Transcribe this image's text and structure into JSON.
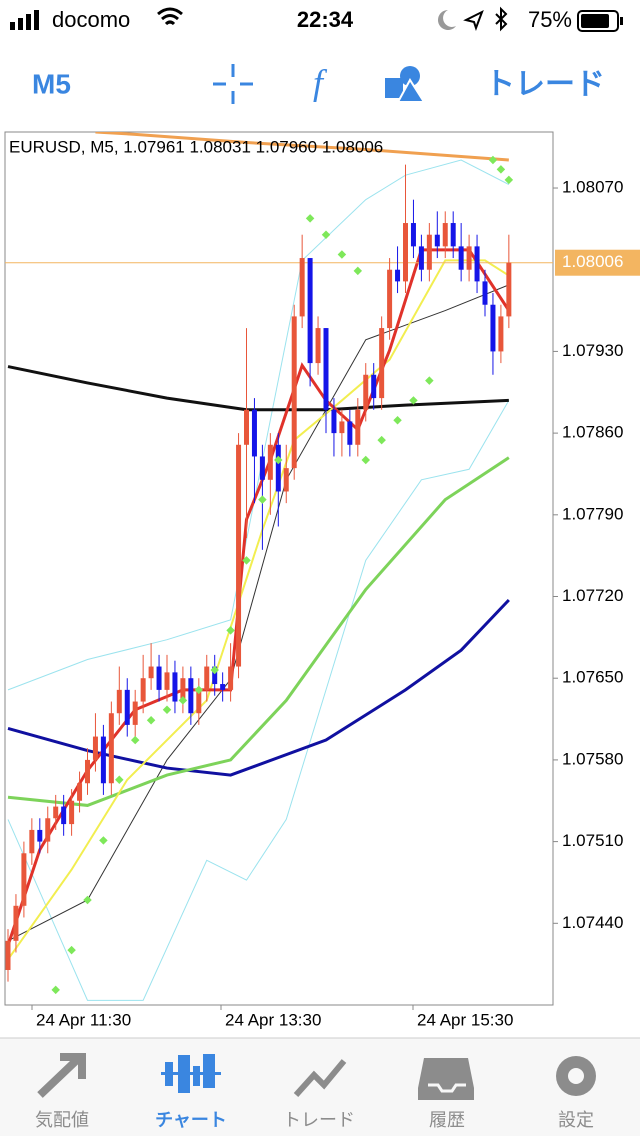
{
  "status_bar": {
    "carrier": "docomo",
    "time": "22:34",
    "battery": "75%"
  },
  "toolbar": {
    "timeframe": "M5",
    "trade": "トレード"
  },
  "chart": {
    "header": "EURUSD, M5, 1.07961 1.08031 1.07960 1.08006",
    "ylim": [
      1.0737,
      1.08118
    ],
    "yticks": [
      {
        "value": 1.0807,
        "label": "1.08070"
      },
      {
        "value": 1.0793,
        "label": "1.07930"
      },
      {
        "value": 1.0786,
        "label": "1.07860"
      },
      {
        "value": 1.0779,
        "label": "1.07790"
      },
      {
        "value": 1.0772,
        "label": "1.07720"
      },
      {
        "value": 1.0765,
        "label": "1.07650"
      },
      {
        "value": 1.0758,
        "label": "1.07580"
      },
      {
        "value": 1.0751,
        "label": "1.07510"
      },
      {
        "value": 1.0744,
        "label": "1.07440"
      }
    ],
    "current_price": 1.08006,
    "xlabels": [
      "24 Apr 11:30",
      "24 Apr 13:30",
      "24 Apr 15:30"
    ],
    "up_color": "#e8563a",
    "down_color": "#1515e8",
    "price_line_color": "#f3b561",
    "candles": {
      "open": [
        1.074,
        1.07425,
        1.07455,
        1.075,
        1.0752,
        1.0751,
        1.0753,
        1.0754,
        1.07525,
        1.07545,
        1.0756,
        1.0758,
        1.076,
        1.0756,
        1.0762,
        1.0764,
        1.0761,
        1.0763,
        1.0765,
        1.0766,
        1.0764,
        1.07655,
        1.0763,
        1.0765,
        1.0762,
        1.0764,
        1.0766,
        1.07645,
        1.0764,
        1.0766,
        1.0785,
        1.0788,
        1.0784,
        1.0782,
        1.0785,
        1.0781,
        1.0783,
        1.0796,
        1.0801,
        1.0792,
        1.0795,
        1.0788,
        1.0786,
        1.0787,
        1.0785,
        1.0788,
        1.0791,
        1.0789,
        1.0795,
        1.08,
        1.0799,
        1.0804,
        1.0802,
        1.08,
        1.0803,
        1.0802,
        1.0804,
        1.0802,
        1.08,
        1.0802,
        1.0799,
        1.0797,
        1.0793,
        1.0796
      ],
      "high": [
        1.07435,
        1.07465,
        1.0751,
        1.0753,
        1.0753,
        1.0754,
        1.0755,
        1.0755,
        1.07555,
        1.0757,
        1.0759,
        1.0762,
        1.0761,
        1.0763,
        1.0766,
        1.0765,
        1.0764,
        1.0767,
        1.0768,
        1.0767,
        1.0767,
        1.07665,
        1.0766,
        1.0766,
        1.0765,
        1.0767,
        1.0767,
        1.07655,
        1.0768,
        1.0786,
        1.0795,
        1.0789,
        1.0785,
        1.0786,
        1.0786,
        1.0785,
        1.0797,
        1.0803,
        1.0801,
        1.0796,
        1.0795,
        1.0789,
        1.0788,
        1.0788,
        1.0789,
        1.0792,
        1.0792,
        1.0796,
        1.0801,
        1.0802,
        1.0809,
        1.0806,
        1.0803,
        1.0804,
        1.0805,
        1.0805,
        1.0805,
        1.0804,
        1.0803,
        1.0803,
        1.08,
        1.0798,
        1.0797,
        1.0803
      ],
      "low": [
        1.0739,
        1.07415,
        1.07445,
        1.0749,
        1.075,
        1.075,
        1.0752,
        1.07515,
        1.07515,
        1.07535,
        1.0755,
        1.0757,
        1.0755,
        1.0755,
        1.0761,
        1.076,
        1.076,
        1.0762,
        1.0764,
        1.0763,
        1.0763,
        1.0762,
        1.0762,
        1.0761,
        1.0761,
        1.0763,
        1.07635,
        1.0763,
        1.0763,
        1.0765,
        1.0777,
        1.078,
        1.0776,
        1.0779,
        1.0778,
        1.078,
        1.0782,
        1.0795,
        1.079,
        1.0791,
        1.0786,
        1.0784,
        1.0784,
        1.0784,
        1.0784,
        1.0787,
        1.0788,
        1.0788,
        1.0794,
        1.0798,
        1.0798,
        1.0801,
        1.0799,
        1.0799,
        1.0801,
        1.0801,
        1.0801,
        1.0799,
        1.0799,
        1.0798,
        1.0796,
        1.0791,
        1.0792,
        1.0795
      ],
      "close": [
        1.07425,
        1.07455,
        1.075,
        1.0752,
        1.0751,
        1.0753,
        1.0754,
        1.07525,
        1.07545,
        1.0756,
        1.0758,
        1.076,
        1.0756,
        1.0762,
        1.0764,
        1.0761,
        1.0763,
        1.0765,
        1.0766,
        1.0764,
        1.07655,
        1.0763,
        1.0765,
        1.0762,
        1.0764,
        1.0766,
        1.07645,
        1.0764,
        1.0766,
        1.0785,
        1.0788,
        1.0784,
        1.0782,
        1.0785,
        1.0781,
        1.0783,
        1.0796,
        1.0801,
        1.0792,
        1.0795,
        1.0788,
        1.0786,
        1.0787,
        1.0785,
        1.0788,
        1.0791,
        1.0789,
        1.0795,
        1.08,
        1.0799,
        1.0804,
        1.0802,
        1.08,
        1.0803,
        1.0802,
        1.0804,
        1.0802,
        1.08,
        1.0802,
        1.0799,
        1.0797,
        1.0793,
        1.0796,
        1.08006
      ]
    },
    "lines": [
      {
        "color": "#9be3ee",
        "x": [
          0,
          10,
          20,
          28,
          32,
          37,
          45,
          50,
          57,
          63
        ],
        "values": [
          1.0764,
          1.07666,
          1.07683,
          1.077,
          1.07837,
          1.08008,
          1.0806,
          1.08081,
          1.08094,
          1.08073
        ]
      },
      {
        "color": "#9be3ee",
        "x": [
          0,
          10,
          17,
          25,
          30,
          35,
          45,
          52,
          58,
          63
        ],
        "values": [
          1.07529,
          1.07374,
          1.07374,
          1.07494,
          1.07477,
          1.07529,
          1.07751,
          1.0782,
          1.07829,
          1.07888
        ]
      },
      {
        "color": "#333333",
        "x": [
          0,
          10,
          20,
          28,
          35,
          45,
          55,
          63
        ],
        "values": [
          1.07425,
          1.0746,
          1.0758,
          1.07649,
          1.0782,
          1.0794,
          1.07965,
          1.07987
        ]
      },
      {
        "color": "#f0a050",
        "x": [
          11,
          16,
          30,
          45,
          63
        ],
        "values": [
          1.08118,
          1.08116,
          1.08109,
          1.08103,
          1.08094
        ]
      },
      {
        "color": "#111111",
        "x": [
          0,
          10,
          20,
          30,
          40,
          50,
          63
        ],
        "values": [
          1.07917,
          1.07903,
          1.0789,
          1.0788,
          1.0788,
          1.07884,
          1.07888
        ]
      },
      {
        "color": "#1010a0",
        "x": [
          0,
          10,
          20,
          28,
          40,
          50,
          57,
          63
        ],
        "values": [
          1.07607,
          1.07588,
          1.07573,
          1.07567,
          1.07597,
          1.0764,
          1.07674,
          1.07717
        ]
      },
      {
        "color": "#7dd35a",
        "x": [
          0,
          10,
          20,
          28,
          35,
          45,
          55,
          63
        ],
        "values": [
          1.07548,
          1.07541,
          1.07567,
          1.0758,
          1.07631,
          1.07726,
          1.07803,
          1.07839
        ]
      },
      {
        "color": "#f2ee50",
        "x": [
          0,
          8,
          15,
          25,
          32,
          36,
          42,
          48,
          55,
          60,
          63
        ],
        "values": [
          1.07409,
          1.07486,
          1.07563,
          1.07631,
          1.07777,
          1.07854,
          1.07888,
          1.07923,
          1.08008,
          1.08008,
          1.07995
        ]
      },
      {
        "color": "#e0322a",
        "x": [
          0,
          4,
          10,
          16,
          22,
          28,
          30,
          33,
          37,
          40,
          44,
          48,
          52,
          58,
          63
        ],
        "values": [
          1.07421,
          1.07503,
          1.07571,
          1.07623,
          1.0764,
          1.0764,
          1.07786,
          1.07837,
          1.07918,
          1.07888,
          1.07863,
          1.07931,
          1.08017,
          1.08017,
          1.07965
        ]
      }
    ],
    "sar": {
      "color": "#7ee85a",
      "x": [
        6,
        8,
        10,
        12,
        14,
        16,
        18,
        20,
        22,
        24,
        26,
        28,
        30,
        32,
        34,
        38,
        40,
        42,
        44,
        45,
        47,
        49,
        51,
        53,
        61,
        62,
        63
      ],
      "values": [
        1.07383,
        1.07417,
        1.0746,
        1.07511,
        1.07563,
        1.07597,
        1.07614,
        1.07623,
        1.07631,
        1.0764,
        1.07657,
        1.07691,
        1.07751,
        1.07803,
        1.07837,
        1.08044,
        1.0803,
        1.08013,
        1.07999,
        1.07837,
        1.07854,
        1.07871,
        1.07888,
        1.07905,
        1.08094,
        1.08086,
        1.08077
      ]
    }
  },
  "tabs": [
    "気配値",
    "チャート",
    "トレード",
    "履歴",
    "設定"
  ]
}
